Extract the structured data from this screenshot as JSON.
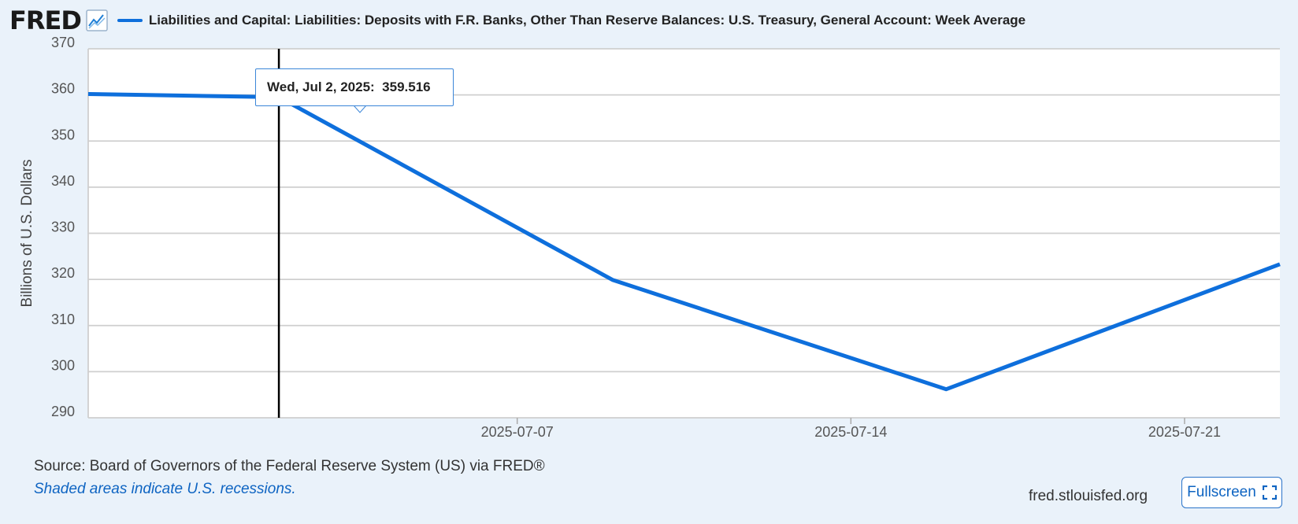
{
  "header": {
    "logo_text": "FRED",
    "logo_icon": "chart-line-icon",
    "series_title": "Liabilities and Capital: Liabilities: Deposits with F.R. Banks, Other Than Reserve Balances: U.S. Treasury, General Account: Week Average",
    "series_color": "#0e6fdc"
  },
  "tooltip": {
    "date": "Wed, Jul 2, 2025:",
    "value": "359.516"
  },
  "footer": {
    "source": "Source: Board of Governors of the Federal Reserve System (US) via FRED®",
    "recession_note": "Shaded areas indicate U.S. recessions.",
    "site": "fred.stlouisfed.org",
    "fullscreen_label": "Fullscreen",
    "fullscreen_icon": "expand-icon"
  },
  "chart_data": {
    "type": "line",
    "title": "Liabilities and Capital: Liabilities: Deposits with F.R. Banks, Other Than Reserve Balances: U.S. Treasury, General Account: Week Average",
    "ylabel": "Billions of U.S. Dollars",
    "xlabel": "",
    "x_range": [
      "2025-06-28",
      "2025-07-23"
    ],
    "ylim": [
      290,
      370
    ],
    "yticks": [
      290,
      300,
      310,
      320,
      330,
      340,
      350,
      360,
      370
    ],
    "xticks": [
      "2025-07-07",
      "2025-07-14",
      "2025-07-21"
    ],
    "grid": true,
    "series": [
      {
        "name": "Liabilities and Capital: Liabilities: Deposits with F.R. Banks, Other Than Reserve Balances: U.S. Treasury, General Account: Week Average",
        "color": "#0e6fdc",
        "x": [
          "2025-06-28",
          "2025-07-02",
          "2025-07-09",
          "2025-07-16",
          "2025-07-23"
        ],
        "y": [
          360.2,
          359.516,
          319.9,
          296.2,
          323.3
        ]
      }
    ],
    "highlight": {
      "x": "2025-07-02",
      "y": 359.516
    }
  }
}
